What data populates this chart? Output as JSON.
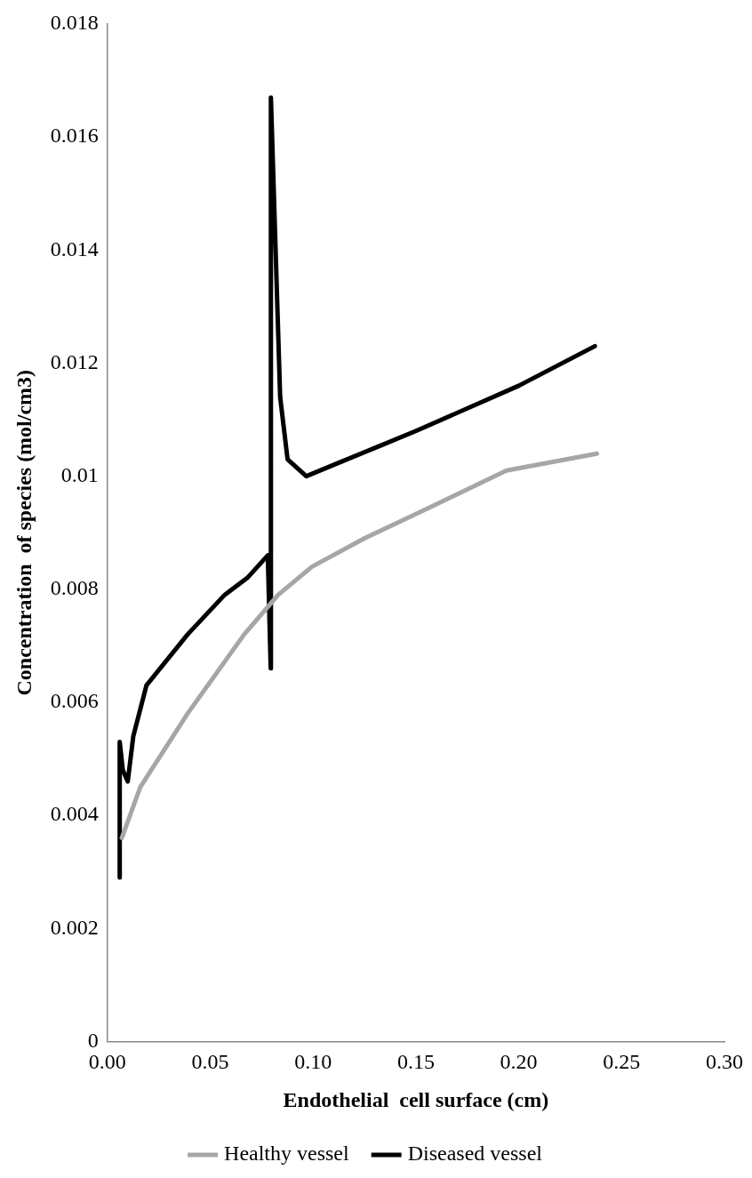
{
  "chart_data": {
    "type": "line",
    "xlabel": "Endothelial  cell surface (cm)",
    "ylabel": "Concentration  of species (mol/cm3)",
    "xlim": [
      0,
      0.3
    ],
    "xticks": [
      {
        "value": 0,
        "label": "0.00"
      },
      0.05,
      {
        "value": 0.1,
        "label": "0.10"
      },
      0.15,
      {
        "value": 0.2,
        "label": "0.20"
      },
      0.25,
      {
        "value": 0.3,
        "label": "0.30"
      }
    ],
    "ylim": [
      0,
      0.018
    ],
    "yticks": [
      0,
      0.002,
      0.004,
      0.006,
      0.008,
      0.01,
      0.012,
      0.014,
      0.016,
      0.018
    ],
    "grid": false,
    "legend": "bottom",
    "marker": "none",
    "line_style": "solid",
    "series": [
      {
        "name": "Healthy vessel",
        "color": "#a6a6a6",
        "x": [
          0.007,
          0.016,
          0.039,
          0.0665,
          0.083,
          0.0995,
          0.125,
          0.154,
          0.194,
          0.238
        ],
        "values": [
          0.0036,
          0.0045,
          0.0058,
          0.0072,
          0.0079,
          0.0084,
          0.0089,
          0.0094,
          0.0101,
          0.0104
        ]
      },
      {
        "name": "Diseased vessel",
        "color": "#000000",
        "x": [
          0.006,
          0.006,
          0.0075,
          0.0099,
          0.0126,
          0.019,
          0.039,
          0.057,
          0.068,
          0.078,
          0.0794,
          0.0795,
          0.084,
          0.0876,
          0.0967,
          0.11,
          0.13,
          0.15,
          0.2,
          0.237
        ],
        "values": [
          0.0029,
          0.0053,
          0.0048,
          0.0046,
          0.0054,
          0.0063,
          0.0072,
          0.0079,
          0.0082,
          0.0086,
          0.0066,
          0.0167,
          0.0114,
          0.0103,
          0.01,
          0.0102,
          0.0105,
          0.0108,
          0.0116,
          0.0123
        ]
      }
    ]
  }
}
